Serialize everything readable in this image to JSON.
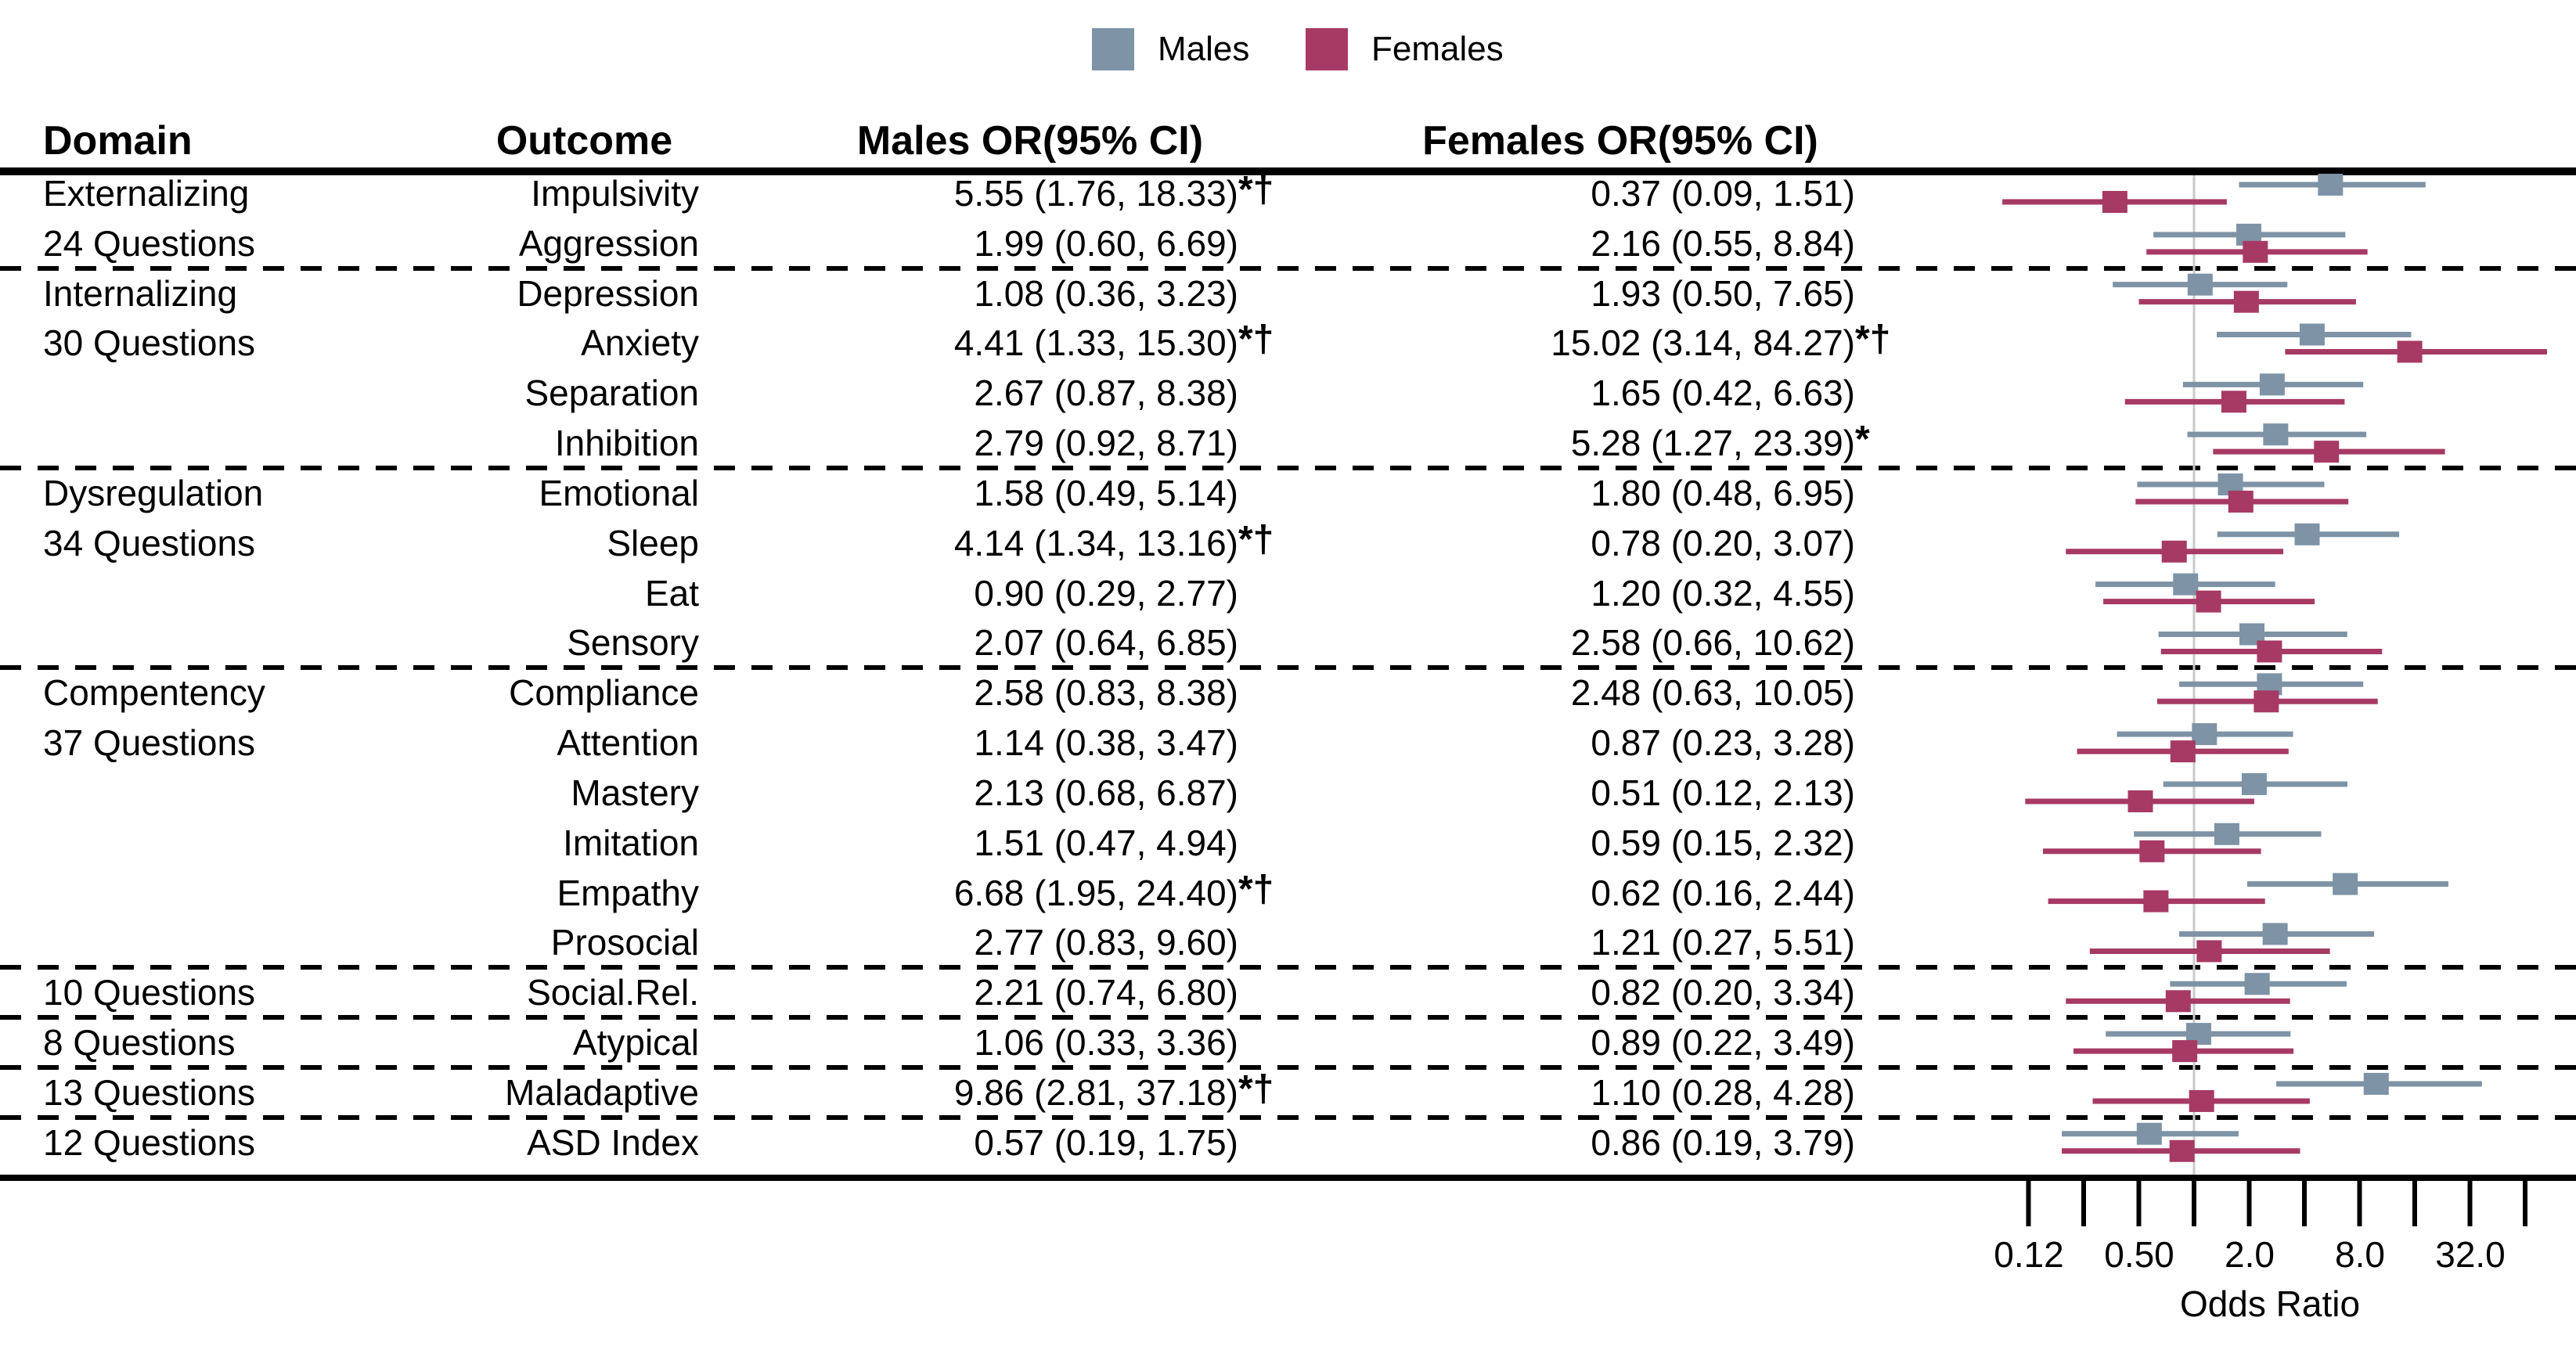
{
  "legend": {
    "males_label": "Males",
    "females_label": "Females"
  },
  "columns": {
    "domain": "Domain",
    "outcome": "Outcome",
    "males_or": "Males OR(95% CI)",
    "females_or": "Females OR(95% CI)"
  },
  "colors": {
    "males": "#7e93a5",
    "females": "#a63a64",
    "reference_line": "#c9c9c9",
    "text": "#000000"
  },
  "chart_data": {
    "type": "forest",
    "title": "Odds ratios by outcome for males and females",
    "x_axis": {
      "label": "Odds Ratio",
      "scale": "log2",
      "ticks": [
        0.125,
        0.25,
        0.5,
        1,
        2,
        4,
        8,
        16,
        32,
        64
      ],
      "tick_labels": [
        {
          "value": 0.125,
          "label": "0.12"
        },
        {
          "value": 0.5,
          "label": "0.50"
        },
        {
          "value": 2,
          "label": "2.0"
        },
        {
          "value": 8,
          "label": "8.0"
        },
        {
          "value": 32,
          "label": "32.0"
        }
      ],
      "reference_line": 1
    },
    "series": [
      {
        "name": "Males",
        "color": "#7e93a5"
      },
      {
        "name": "Females",
        "color": "#a63a64"
      }
    ],
    "rows": [
      {
        "domain": "Externalizing",
        "outcome": "Impulsivity",
        "male": {
          "or": 5.55,
          "lo": 1.76,
          "hi": 18.33,
          "text": "5.55 (1.76, 18.33)",
          "suffix": "*†"
        },
        "female": {
          "or": 0.37,
          "lo": 0.09,
          "hi": 1.51,
          "text": "0.37 (0.09, 1.51)",
          "suffix": ""
        },
        "separator_after": false
      },
      {
        "domain": "24 Questions",
        "outcome": "Aggression",
        "male": {
          "or": 1.99,
          "lo": 0.6,
          "hi": 6.69,
          "text": "1.99 (0.60, 6.69)",
          "suffix": ""
        },
        "female": {
          "or": 2.16,
          "lo": 0.55,
          "hi": 8.84,
          "text": "2.16 (0.55, 8.84)",
          "suffix": ""
        },
        "separator_after": true
      },
      {
        "domain": "Internalizing",
        "outcome": "Depression",
        "male": {
          "or": 1.08,
          "lo": 0.36,
          "hi": 3.23,
          "text": "1.08 (0.36, 3.23)",
          "suffix": ""
        },
        "female": {
          "or": 1.93,
          "lo": 0.5,
          "hi": 7.65,
          "text": "1.93 (0.50, 7.65)",
          "suffix": ""
        },
        "separator_after": false
      },
      {
        "domain": "30 Questions",
        "outcome": "Anxiety",
        "male": {
          "or": 4.41,
          "lo": 1.33,
          "hi": 15.3,
          "text": "4.41 (1.33, 15.30)",
          "suffix": "*†"
        },
        "female": {
          "or": 15.02,
          "lo": 3.14,
          "hi": 84.27,
          "text": "15.02 (3.14, 84.27)",
          "suffix": "*†"
        },
        "separator_after": false
      },
      {
        "domain": "",
        "outcome": "Separation",
        "male": {
          "or": 2.67,
          "lo": 0.87,
          "hi": 8.38,
          "text": "2.67 (0.87, 8.38)",
          "suffix": ""
        },
        "female": {
          "or": 1.65,
          "lo": 0.42,
          "hi": 6.63,
          "text": "1.65 (0.42, 6.63)",
          "suffix": ""
        },
        "separator_after": false
      },
      {
        "domain": "",
        "outcome": "Inhibition",
        "male": {
          "or": 2.79,
          "lo": 0.92,
          "hi": 8.71,
          "text": "2.79 (0.92, 8.71)",
          "suffix": ""
        },
        "female": {
          "or": 5.28,
          "lo": 1.27,
          "hi": 23.39,
          "text": "5.28 (1.27, 23.39)",
          "suffix": "*"
        },
        "separator_after": true
      },
      {
        "domain": "Dysregulation",
        "outcome": "Emotional",
        "male": {
          "or": 1.58,
          "lo": 0.49,
          "hi": 5.14,
          "text": "1.58 (0.49, 5.14)",
          "suffix": ""
        },
        "female": {
          "or": 1.8,
          "lo": 0.48,
          "hi": 6.95,
          "text": "1.80 (0.48, 6.95)",
          "suffix": ""
        },
        "separator_after": false
      },
      {
        "domain": "34 Questions",
        "outcome": "Sleep",
        "male": {
          "or": 4.14,
          "lo": 1.34,
          "hi": 13.16,
          "text": "4.14 (1.34, 13.16)",
          "suffix": "*†"
        },
        "female": {
          "or": 0.78,
          "lo": 0.2,
          "hi": 3.07,
          "text": "0.78 (0.20, 3.07)",
          "suffix": ""
        },
        "separator_after": false
      },
      {
        "domain": "",
        "outcome": "Eat",
        "male": {
          "or": 0.9,
          "lo": 0.29,
          "hi": 2.77,
          "text": "0.90 (0.29, 2.77)",
          "suffix": ""
        },
        "female": {
          "or": 1.2,
          "lo": 0.32,
          "hi": 4.55,
          "text": "1.20 (0.32, 4.55)",
          "suffix": ""
        },
        "separator_after": false
      },
      {
        "domain": "",
        "outcome": "Sensory",
        "male": {
          "or": 2.07,
          "lo": 0.64,
          "hi": 6.85,
          "text": "2.07 (0.64, 6.85)",
          "suffix": ""
        },
        "female": {
          "or": 2.58,
          "lo": 0.66,
          "hi": 10.62,
          "text": "2.58 (0.66, 10.62)",
          "suffix": ""
        },
        "separator_after": true
      },
      {
        "domain": "Compentency",
        "outcome": "Compliance",
        "male": {
          "or": 2.58,
          "lo": 0.83,
          "hi": 8.38,
          "text": "2.58 (0.83, 8.38)",
          "suffix": ""
        },
        "female": {
          "or": 2.48,
          "lo": 0.63,
          "hi": 10.05,
          "text": "2.48 (0.63, 10.05)",
          "suffix": ""
        },
        "separator_after": false
      },
      {
        "domain": "37 Questions",
        "outcome": "Attention",
        "male": {
          "or": 1.14,
          "lo": 0.38,
          "hi": 3.47,
          "text": "1.14 (0.38, 3.47)",
          "suffix": ""
        },
        "female": {
          "or": 0.87,
          "lo": 0.23,
          "hi": 3.28,
          "text": "0.87 (0.23, 3.28)",
          "suffix": ""
        },
        "separator_after": false
      },
      {
        "domain": "",
        "outcome": "Mastery",
        "male": {
          "or": 2.13,
          "lo": 0.68,
          "hi": 6.87,
          "text": "2.13 (0.68, 6.87)",
          "suffix": ""
        },
        "female": {
          "or": 0.51,
          "lo": 0.12,
          "hi": 2.13,
          "text": "0.51 (0.12, 2.13)",
          "suffix": ""
        },
        "separator_after": false
      },
      {
        "domain": "",
        "outcome": "Imitation",
        "male": {
          "or": 1.51,
          "lo": 0.47,
          "hi": 4.94,
          "text": "1.51 (0.47, 4.94)",
          "suffix": ""
        },
        "female": {
          "or": 0.59,
          "lo": 0.15,
          "hi": 2.32,
          "text": "0.59 (0.15, 2.32)",
          "suffix": ""
        },
        "separator_after": false
      },
      {
        "domain": "",
        "outcome": "Empathy",
        "male": {
          "or": 6.68,
          "lo": 1.95,
          "hi": 24.4,
          "text": "6.68 (1.95, 24.40)",
          "suffix": "*†"
        },
        "female": {
          "or": 0.62,
          "lo": 0.16,
          "hi": 2.44,
          "text": "0.62 (0.16, 2.44)",
          "suffix": ""
        },
        "separator_after": false
      },
      {
        "domain": "",
        "outcome": "Prosocial",
        "male": {
          "or": 2.77,
          "lo": 0.83,
          "hi": 9.6,
          "text": "2.77 (0.83, 9.60)",
          "suffix": ""
        },
        "female": {
          "or": 1.21,
          "lo": 0.27,
          "hi": 5.51,
          "text": "1.21 (0.27, 5.51)",
          "suffix": ""
        },
        "separator_after": true
      },
      {
        "domain": "10 Questions",
        "outcome": "Social.Rel.",
        "male": {
          "or": 2.21,
          "lo": 0.74,
          "hi": 6.8,
          "text": "2.21 (0.74, 6.80)",
          "suffix": ""
        },
        "female": {
          "or": 0.82,
          "lo": 0.2,
          "hi": 3.34,
          "text": "0.82 (0.20, 3.34)",
          "suffix": ""
        },
        "separator_after": true
      },
      {
        "domain": "8 Questions",
        "outcome": "Atypical",
        "male": {
          "or": 1.06,
          "lo": 0.33,
          "hi": 3.36,
          "text": "1.06 (0.33, 3.36)",
          "suffix": ""
        },
        "female": {
          "or": 0.89,
          "lo": 0.22,
          "hi": 3.49,
          "text": "0.89 (0.22, 3.49)",
          "suffix": ""
        },
        "separator_after": true
      },
      {
        "domain": "13 Questions",
        "outcome": "Maladaptive",
        "male": {
          "or": 9.86,
          "lo": 2.81,
          "hi": 37.18,
          "text": "9.86 (2.81, 37.18)",
          "suffix": "*†"
        },
        "female": {
          "or": 1.1,
          "lo": 0.28,
          "hi": 4.28,
          "text": "1.10 (0.28, 4.28)",
          "suffix": ""
        },
        "separator_after": true
      },
      {
        "domain": "12 Questions",
        "outcome": "ASD Index",
        "male": {
          "or": 0.57,
          "lo": 0.19,
          "hi": 1.75,
          "text": "0.57 (0.19, 1.75)",
          "suffix": ""
        },
        "female": {
          "or": 0.86,
          "lo": 0.19,
          "hi": 3.79,
          "text": "0.86 (0.19, 3.79)",
          "suffix": ""
        },
        "separator_after": false
      }
    ]
  }
}
